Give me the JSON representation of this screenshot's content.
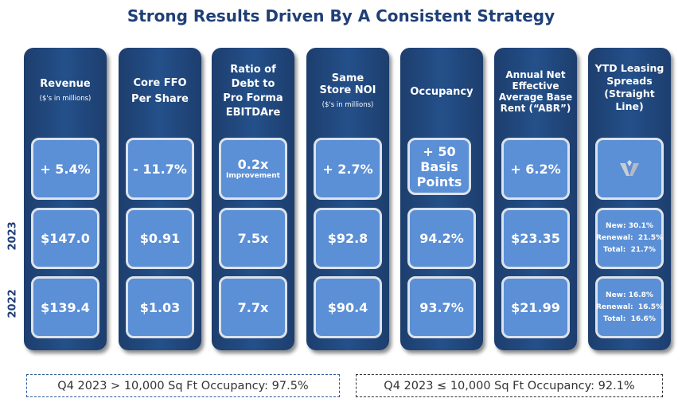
{
  "title": "Strong Results Driven By A Consistent Strategy",
  "years": [
    "2023",
    "2022"
  ],
  "columns": [
    {
      "header": "Revenue",
      "sub": "($'s in millions)",
      "change": "+ 5.4%",
      "v2023": "$147.0",
      "v2022": "$139.4"
    },
    {
      "header": "Core FFO Per Share",
      "change": "- 11.7%",
      "v2023": "$0.91",
      "v2022": "$1.03"
    },
    {
      "header": "Ratio of Debt to Pro Forma EBITDAre",
      "change": "0.2x",
      "change_sub": "Improvement",
      "v2023": "7.5x",
      "v2022": "7.7x"
    },
    {
      "header": "Same Store NOI",
      "sub": "($'s in millions)",
      "change": "+ 2.7%",
      "v2023": "$92.8",
      "v2022": "$90.4"
    },
    {
      "header": "Occupancy",
      "change": "+ 50 Basis Points",
      "v2023": "94.2%",
      "v2022": "93.7%"
    },
    {
      "header": "Annual Net Effective Average Base Rent (“ABR”)",
      "change": "+ 6.2%",
      "v2023": "$23.35",
      "v2022": "$21.99"
    },
    {
      "header": "YTD Leasing Spreads (Straight Line)",
      "change_icon": "company-logo-icon",
      "s2023": [
        "New: 30.1%",
        "Renewal:  21.5%",
        "Total:  21.7%"
      ],
      "s2022": [
        "New: 16.8%",
        "Renewal:  16.5%",
        "Total:  16.6%"
      ]
    }
  ],
  "notes": [
    "Q4 2023 > 10,000 Sq Ft Occupancy:  97.5%",
    "Q4 2023 ≤ 10,000 Sq Ft Occupancy:  92.1%"
  ]
}
